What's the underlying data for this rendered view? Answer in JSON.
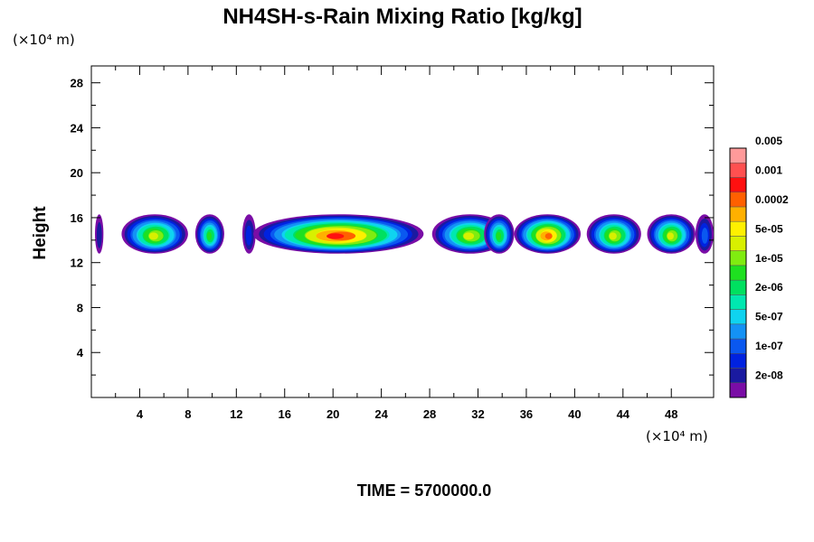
{
  "chart_data": {
    "type": "heatmap",
    "title": "NH4SH-s-Rain Mixing Ratio [kg/kg]",
    "xlabel": "",
    "ylabel": "Height",
    "x_unit_label": "(×10⁴ m)",
    "y_unit_label": "(×10⁴ m)",
    "xlim": [
      0,
      51.5
    ],
    "ylim": [
      0,
      29.5
    ],
    "x_ticks": [
      4,
      8,
      12,
      16,
      20,
      24,
      28,
      32,
      36,
      40,
      44,
      48
    ],
    "y_ticks": [
      4,
      8,
      12,
      16,
      20,
      24,
      28
    ],
    "colorbar": {
      "colors": [
        "#7a0da6",
        "#1a1aa0",
        "#0022e0",
        "#0a58f0",
        "#1492f5",
        "#0fd3f0",
        "#00e8b0",
        "#00e060",
        "#1ee020",
        "#80ec10",
        "#d8f000",
        "#fff000",
        "#ffb000",
        "#ff6000",
        "#ff1010",
        "#ff5050",
        "#ff9a9a"
      ],
      "labels": [
        "2e-08",
        "1e-07",
        "5e-07",
        "2e-06",
        "1e-05",
        "5e-05",
        "0.0002",
        "0.001",
        "0.005"
      ]
    },
    "cloud_layer": {
      "base_height": 12.8,
      "top_height": 16.3,
      "cells": [
        {
          "x_start": 0.3,
          "x_end": 1.0,
          "peak_level": 1
        },
        {
          "x_start": 2.5,
          "x_end": 8.0,
          "peak_level": 10
        },
        {
          "x_start": 8.6,
          "x_end": 11.0,
          "peak_level": 8
        },
        {
          "x_start": 12.5,
          "x_end": 13.6,
          "peak_level": 2
        },
        {
          "x_start": 13.4,
          "x_end": 27.5,
          "peak_level": 14
        },
        {
          "x_start": 28.2,
          "x_end": 34.5,
          "peak_level": 10
        },
        {
          "x_start": 32.5,
          "x_end": 35.0,
          "peak_level": 8
        },
        {
          "x_start": 35.0,
          "x_end": 40.5,
          "peak_level": 13
        },
        {
          "x_start": 41.0,
          "x_end": 45.5,
          "peak_level": 10
        },
        {
          "x_start": 46.0,
          "x_end": 50.0,
          "peak_level": 10
        },
        {
          "x_start": 50.0,
          "x_end": 51.5,
          "peak_level": 3
        }
      ]
    }
  },
  "footer": {
    "time_label": "TIME = 5700000.0"
  }
}
